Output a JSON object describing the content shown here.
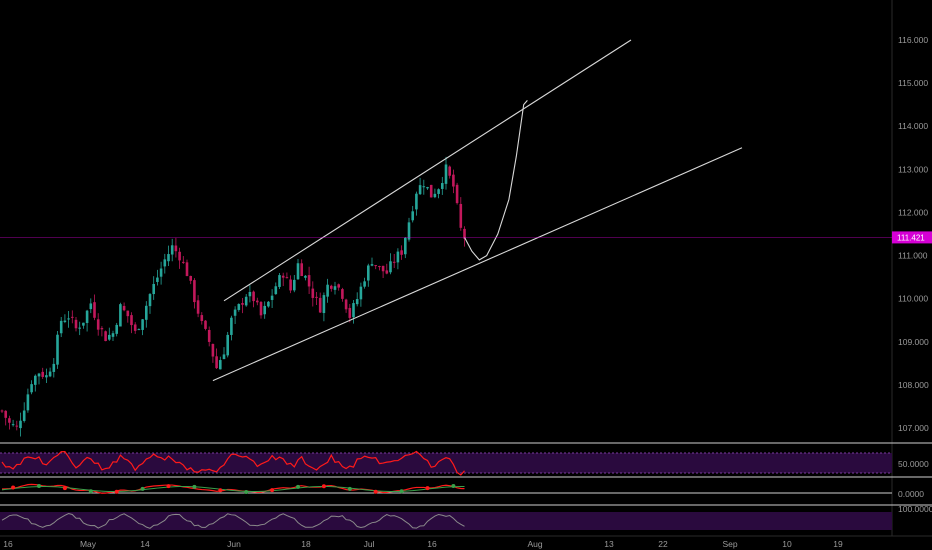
{
  "chart_data": {
    "type": "candlestick",
    "title": "",
    "xlabel": "",
    "ylabel": "",
    "ylim": [
      106.5,
      116.3
    ],
    "y_ticks": [
      "107.000",
      "108.000",
      "109.000",
      "110.000",
      "111.000",
      "112.000",
      "113.000",
      "114.000",
      "115.000",
      "116.000"
    ],
    "x_ticks": [
      "16",
      "May",
      "14",
      "Jun",
      "18",
      "Jul",
      "16",
      "Aug",
      "13",
      "22",
      "Sep",
      "10",
      "19"
    ],
    "last_price": "111.421",
    "grid": false,
    "colors": {
      "up": "#26a69a",
      "down": "#c2185b",
      "background": "#000000",
      "axis_text": "#9a9a9a",
      "trendline": "#d8d8d8",
      "price_badge": "#d500d5",
      "indicator_band": "#3b0a52",
      "rsi_line": "#ff1a1a",
      "stoch_line": "#8a8a8a"
    },
    "series": [
      {
        "name": "price",
        "close_path": [
          [
            0,
            107.4
          ],
          [
            2,
            107.1
          ],
          [
            4,
            107.0
          ],
          [
            6,
            107.5
          ],
          [
            8,
            108.1
          ],
          [
            10,
            108.3
          ],
          [
            12,
            108.2
          ],
          [
            14,
            108.6
          ],
          [
            16,
            109.5
          ],
          [
            18,
            109.6
          ],
          [
            20,
            109.3
          ],
          [
            22,
            109.5
          ],
          [
            24,
            109.9
          ],
          [
            26,
            109.4
          ],
          [
            28,
            109.1
          ],
          [
            30,
            109.2
          ],
          [
            32,
            109.8
          ],
          [
            34,
            109.6
          ],
          [
            36,
            109.2
          ],
          [
            38,
            109.6
          ],
          [
            40,
            110.1
          ],
          [
            42,
            110.5
          ],
          [
            44,
            110.9
          ],
          [
            46,
            111.2
          ],
          [
            48,
            111.0
          ],
          [
            50,
            110.6
          ],
          [
            52,
            110.0
          ],
          [
            54,
            109.4
          ],
          [
            56,
            109.0
          ],
          [
            58,
            108.4
          ],
          [
            60,
            108.8
          ],
          [
            62,
            109.5
          ],
          [
            64,
            109.8
          ],
          [
            66,
            110.1
          ],
          [
            68,
            110.0
          ],
          [
            70,
            109.6
          ],
          [
            72,
            109.9
          ],
          [
            74,
            110.3
          ],
          [
            76,
            110.6
          ],
          [
            78,
            110.2
          ],
          [
            80,
            110.8
          ],
          [
            82,
            110.5
          ],
          [
            84,
            110.1
          ],
          [
            86,
            109.8
          ],
          [
            88,
            110.3
          ],
          [
            90,
            110.4
          ],
          [
            92,
            110.1
          ],
          [
            94,
            109.6
          ],
          [
            96,
            110.0
          ],
          [
            98,
            110.5
          ],
          [
            100,
            110.9
          ],
          [
            102,
            110.7
          ],
          [
            104,
            110.6
          ],
          [
            106,
            110.9
          ],
          [
            108,
            111.1
          ],
          [
            110,
            111.8
          ],
          [
            112,
            112.5
          ],
          [
            114,
            112.7
          ],
          [
            116,
            112.4
          ],
          [
            118,
            112.6
          ],
          [
            120,
            113.0
          ],
          [
            122,
            112.6
          ],
          [
            124,
            111.6
          ],
          [
            125,
            111.421
          ]
        ]
      },
      {
        "name": "projection",
        "path": [
          [
            125,
            111.421
          ],
          [
            127,
            111.1
          ],
          [
            129,
            110.9
          ],
          [
            131,
            111.0
          ],
          [
            134,
            111.5
          ],
          [
            137,
            112.3
          ],
          [
            139,
            113.3
          ],
          [
            141,
            114.5
          ],
          [
            142,
            114.6
          ]
        ]
      }
    ],
    "trendlines": [
      {
        "from": [
          60,
          109.95
        ],
        "to": [
          170,
          116.0
        ]
      },
      {
        "from": [
          57,
          108.1
        ],
        "to": [
          200,
          113.5
        ]
      }
    ]
  }
}
